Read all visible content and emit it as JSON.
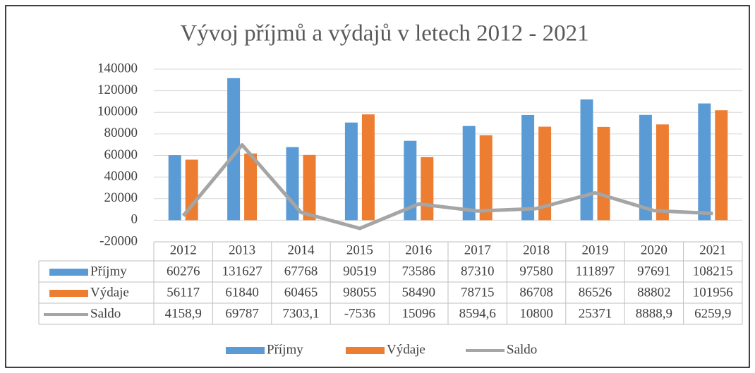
{
  "chart_data": {
    "type": "bar",
    "title": "Vývoj příjmů a výdajů v letech 2012 - 2021",
    "categories": [
      "2012",
      "2013",
      "2014",
      "2015",
      "2016",
      "2017",
      "2018",
      "2019",
      "2020",
      "2021"
    ],
    "series": [
      {
        "name": "Příjmy",
        "color": "#5b9bd5",
        "type": "bar",
        "values": [
          60276,
          131627,
          67768,
          90519,
          73586,
          87310,
          97580,
          111897,
          97691,
          108215
        ]
      },
      {
        "name": "Výdaje",
        "color": "#ed7d31",
        "type": "bar",
        "values": [
          56117,
          61840,
          60465,
          98055,
          58490,
          78715,
          86708,
          86526,
          88802,
          101956
        ]
      },
      {
        "name": "Saldo",
        "color": "#a5a5a5",
        "type": "line",
        "values": [
          4158.9,
          69787,
          7303.1,
          -7536,
          15096,
          8594.6,
          10800,
          25371,
          8888.9,
          6259.9
        ],
        "value_labels": [
          "4158,9",
          "69787",
          "7303,1",
          "-7536",
          "15096",
          "8594,6",
          "10800",
          "25371",
          "8888,9",
          "6259,9"
        ]
      }
    ],
    "ylim": [
      -20000,
      140000
    ],
    "yticks": [
      -20000,
      0,
      20000,
      40000,
      60000,
      80000,
      100000,
      120000,
      140000
    ],
    "grid": true,
    "legend": "bottom",
    "data_table": true
  }
}
